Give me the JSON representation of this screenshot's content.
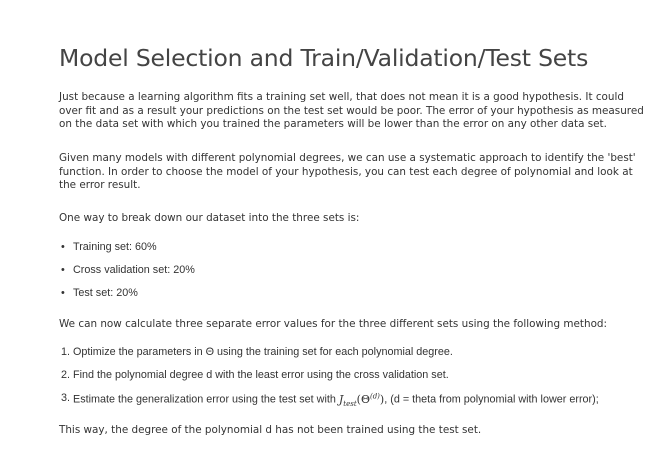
{
  "title": "Model Selection and Train/Validation/Test Sets",
  "paragraphs": {
    "intro": "Just because a learning algorithm fits a training set well, that does not mean it is a good hypothesis. It could over fit and as a result your predictions on the test set would be poor. The error of your hypothesis as measured on the data set with which you trained the parameters will be lower than the error on any other data set.",
    "models": "Given many models with different polynomial degrees, we can use a systematic approach to identify the 'best' function. In order to choose the model of your hypothesis, you can test each degree of polynomial and look at the error result.",
    "breakdown": "One way to break down our dataset into the three sets is:",
    "calculate": "We can now calculate three separate error values for the three different sets using the following method:",
    "conclusion": "This way, the degree of the polynomial d has not been trained using the test set."
  },
  "bullets": [
    "Training set: 60%",
    "Cross validation set: 20%",
    "Test set: 20%"
  ],
  "steps": [
    {
      "num": "1.",
      "text": "Optimize the parameters in Θ using the training set for each polynomial degree."
    },
    {
      "num": "2.",
      "text": "Find the polynomial degree d with the least error using the cross validation set."
    },
    {
      "num": "3.",
      "text_before": "Estimate the generalization error using the test set with",
      "math_J": "J",
      "math_sub": "test",
      "math_arg_open": "(Θ",
      "math_sup": "(d)",
      "math_arg_close": ")",
      "text_after": ", (d = theta from polynomial with lower error);"
    }
  ]
}
